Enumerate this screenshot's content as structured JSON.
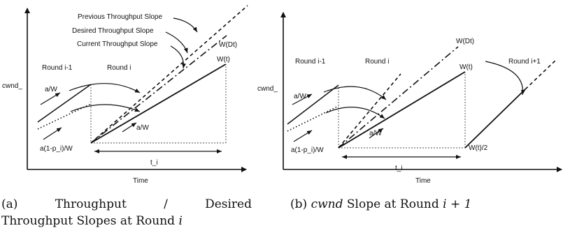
{
  "panel_a": {
    "axes": {
      "y_label": "cwnd_",
      "x_label": "Time"
    },
    "labels": {
      "previous_slope": "Previous Throughput Slope",
      "desired_slope": "Desired Throughput Slope",
      "current_slope": "Current Throughput Slope",
      "w_dt": "W(Dt)",
      "w_t": "W(t)",
      "round_prev": "Round i-1",
      "round_cur": "Round i",
      "a_over_w_left": "a/W",
      "a_over_w_mid": "a/W",
      "a_one_minus_p": "a(1-p_i)/W",
      "t_i": "t_i"
    },
    "caption": {
      "tag": "(a)",
      "word1": "Throughput",
      "sep": "/",
      "word2": "Desired",
      "line2_text": "Throughput Slopes at Round ",
      "line2_var": "i"
    }
  },
  "panel_b": {
    "axes": {
      "y_label": "cwnd_",
      "x_label": "Time"
    },
    "labels": {
      "w_dt": "W(Dt)",
      "w_t": "W(t)",
      "w_t_half": "W(t)/2",
      "round_prev": "Round i-1",
      "round_cur": "Round i",
      "round_next": "Round i+1",
      "a_over_w_left": "a/W",
      "a_over_w_mid": "a/W",
      "a_one_minus_p": "a(1-p_i)/W",
      "t_i": "t_i"
    },
    "caption": {
      "tag": "(b)",
      "var": "cwnd",
      "text": " Slope at Round ",
      "math": "i + 1"
    }
  }
}
